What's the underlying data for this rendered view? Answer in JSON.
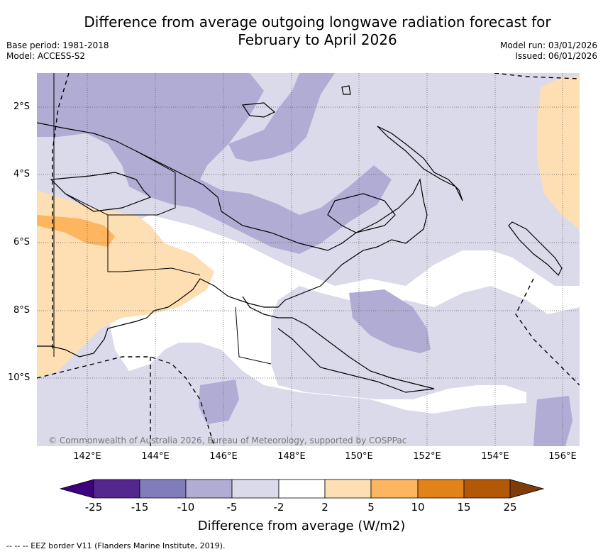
{
  "title_line1": "Difference from average outgoing longwave radiation forecast for",
  "title_line2": "February to April 2026",
  "base_period": "Base period: 1981-2018",
  "model": "Model: ACCESS-S2",
  "model_run": "Model run: 03/01/2026",
  "issued": "Issued: 06/01/2026",
  "lat_labels": [
    "2°S",
    "4°S",
    "6°S",
    "8°S",
    "10°S"
  ],
  "lon_labels": [
    "142°E",
    "144°E",
    "146°E",
    "148°E",
    "150°E",
    "152°E",
    "154°E",
    "156°E"
  ],
  "copyright": "© Commonwealth of Australia 2026, Bureau of Meteorology, supported by COSPPac",
  "colorbar": {
    "ticks": [
      "-25",
      "-15",
      "-10",
      "-5",
      "-2",
      "2",
      "5",
      "10",
      "15",
      "25"
    ],
    "colors": [
      "#3f007d",
      "#54278f",
      "#807dba",
      "#b1acd4",
      "#dadaeb",
      "#ffffff",
      "#fddfb3",
      "#fdb560",
      "#e1821a",
      "#b35806",
      "#7f3b08"
    ],
    "label": "Difference from average (W/m2)"
  },
  "eez_legend": "-- -- -- EEZ border V11 (Flanders Marine Institute, 2019)."
}
